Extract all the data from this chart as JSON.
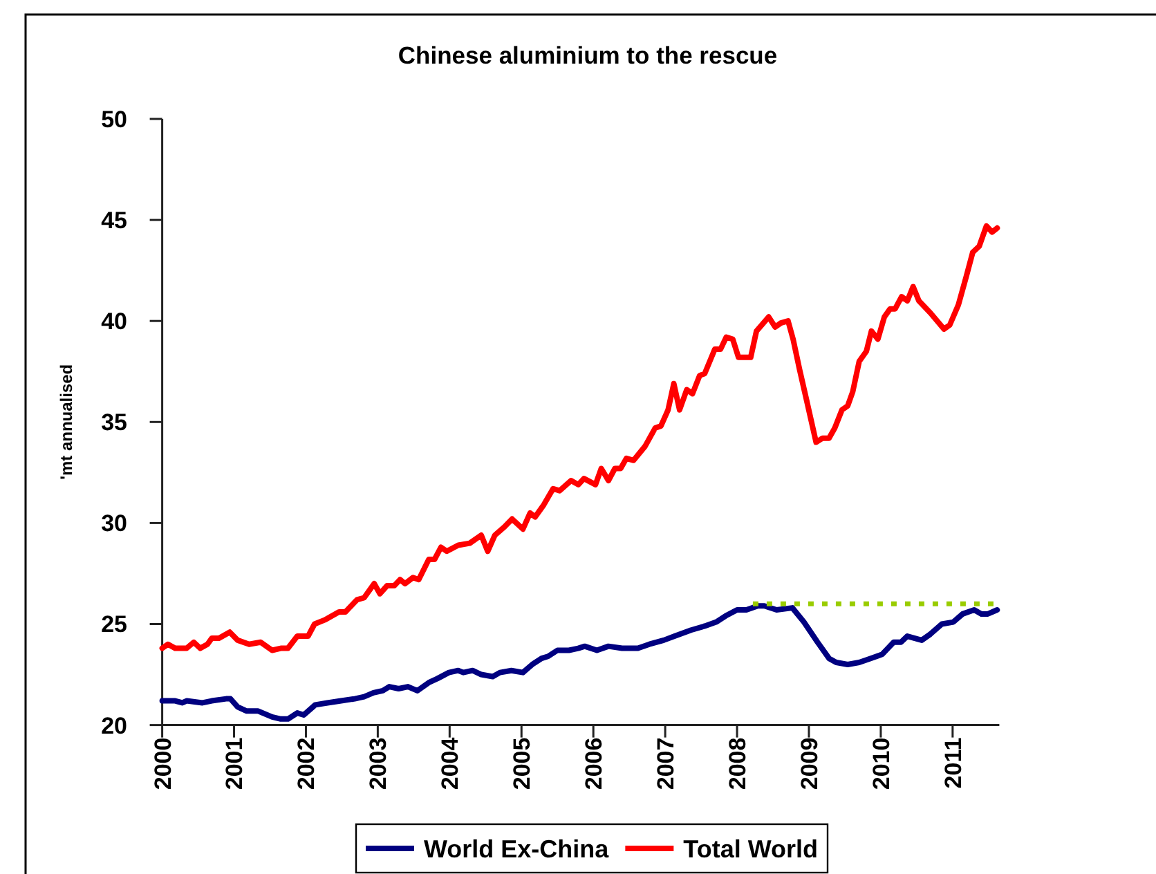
{
  "chart_data": {
    "type": "line",
    "title": "Chinese aluminium to the rescue",
    "ylabel": "'mt annualised",
    "xlim": [
      2000,
      2011.65
    ],
    "xticks": [
      2000,
      2001,
      2002,
      2003,
      2004,
      2005,
      2006,
      2007,
      2008,
      2009,
      2010,
      2011
    ],
    "ylim": [
      20,
      50
    ],
    "yticks": [
      20,
      25,
      30,
      35,
      40,
      45,
      50
    ],
    "legend": "bottom",
    "line_style": "solid",
    "marker": "none",
    "series": [
      {
        "name": "World Ex-China",
        "color": "#000080",
        "x": [
          2000.0,
          2000.18,
          2000.28,
          2000.34,
          2000.56,
          2000.69,
          2000.89,
          2000.95,
          2001.05,
          2001.17,
          2001.33,
          2001.53,
          2001.65,
          2001.75,
          2001.88,
          2001.97,
          2002.13,
          2002.3,
          2002.49,
          2002.68,
          2002.81,
          2002.94,
          2003.07,
          2003.16,
          2003.29,
          2003.42,
          2003.55,
          2003.71,
          2003.83,
          2003.99,
          2004.12,
          2004.19,
          2004.32,
          2004.44,
          2004.6,
          2004.7,
          2004.86,
          2005.02,
          2005.15,
          2005.28,
          2005.37,
          2005.5,
          2005.66,
          2005.79,
          2005.88,
          2006.05,
          2006.21,
          2006.4,
          2006.62,
          2006.78,
          2006.98,
          2007.13,
          2007.36,
          2007.55,
          2007.71,
          2007.84,
          2008.0,
          2008.13,
          2008.29,
          2008.38,
          2008.55,
          2008.77,
          2008.93,
          2009.12,
          2009.28,
          2009.38,
          2009.54,
          2009.7,
          2009.86,
          2010.02,
          2010.18,
          2010.28,
          2010.37,
          2010.57,
          2010.69,
          2010.85,
          2011.01,
          2011.14,
          2011.3,
          2011.4,
          2011.49,
          2011.62
        ],
        "values": [
          21.2,
          21.2,
          21.1,
          21.2,
          21.1,
          21.2,
          21.3,
          21.3,
          20.9,
          20.7,
          20.7,
          20.4,
          20.3,
          20.3,
          20.6,
          20.5,
          21.0,
          21.1,
          21.2,
          21.3,
          21.4,
          21.6,
          21.7,
          21.9,
          21.8,
          21.9,
          21.7,
          22.1,
          22.3,
          22.6,
          22.7,
          22.6,
          22.7,
          22.5,
          22.4,
          22.6,
          22.7,
          22.6,
          23.0,
          23.3,
          23.4,
          23.7,
          23.7,
          23.8,
          23.9,
          23.7,
          23.9,
          23.8,
          23.8,
          24.0,
          24.2,
          24.4,
          24.7,
          24.9,
          25.1,
          25.4,
          25.7,
          25.7,
          25.9,
          25.9,
          25.7,
          25.8,
          25.1,
          24.1,
          23.3,
          23.1,
          23.0,
          23.1,
          23.3,
          23.5,
          24.1,
          24.1,
          24.4,
          24.2,
          24.5,
          25.0,
          25.1,
          25.5,
          25.7,
          25.5,
          25.5,
          25.7
        ]
      },
      {
        "name": "Total World",
        "color": "#ff0000",
        "x": [
          2000.0,
          2000.08,
          2000.18,
          2000.34,
          2000.44,
          2000.53,
          2000.63,
          2000.69,
          2000.79,
          2000.94,
          2001.05,
          2001.21,
          2001.37,
          2001.53,
          2001.65,
          2001.75,
          2001.88,
          2002.03,
          2002.12,
          2002.26,
          2002.46,
          2002.55,
          2002.71,
          2002.81,
          2002.95,
          2003.03,
          2003.13,
          2003.23,
          2003.31,
          2003.38,
          2003.49,
          2003.57,
          2003.71,
          2003.79,
          2003.88,
          2003.96,
          2004.12,
          2004.28,
          2004.44,
          2004.53,
          2004.63,
          2004.76,
          2004.87,
          2005.02,
          2005.12,
          2005.19,
          2005.31,
          2005.44,
          2005.53,
          2005.69,
          2005.79,
          2005.87,
          2006.03,
          2006.11,
          2006.21,
          2006.3,
          2006.38,
          2006.46,
          2006.56,
          2006.72,
          2006.86,
          2006.94,
          2007.04,
          2007.12,
          2007.2,
          2007.3,
          2007.38,
          2007.48,
          2007.55,
          2007.69,
          2007.77,
          2007.85,
          2007.94,
          2008.02,
          2008.19,
          2008.27,
          2008.44,
          2008.53,
          2008.61,
          2008.71,
          2008.78,
          2008.87,
          2008.96,
          2009.1,
          2009.19,
          2009.28,
          2009.36,
          2009.46,
          2009.54,
          2009.61,
          2009.7,
          2009.8,
          2009.87,
          2009.96,
          2010.05,
          2010.13,
          2010.2,
          2010.29,
          2010.37,
          2010.45,
          2010.53,
          2010.69,
          2010.88,
          2010.96,
          2011.08,
          2011.19,
          2011.28,
          2011.37,
          2011.47,
          2011.55,
          2011.62
        ],
        "values": [
          23.8,
          24.0,
          23.8,
          23.8,
          24.1,
          23.8,
          24.0,
          24.3,
          24.3,
          24.6,
          24.2,
          24.0,
          24.1,
          23.7,
          23.8,
          23.8,
          24.4,
          24.4,
          25.0,
          25.2,
          25.6,
          25.6,
          26.2,
          26.3,
          27.0,
          26.5,
          26.9,
          26.9,
          27.2,
          27.0,
          27.3,
          27.2,
          28.2,
          28.2,
          28.8,
          28.6,
          28.9,
          29.0,
          29.4,
          28.6,
          29.4,
          29.8,
          30.2,
          29.7,
          30.5,
          30.3,
          30.9,
          31.7,
          31.6,
          32.1,
          31.9,
          32.2,
          31.9,
          32.7,
          32.1,
          32.7,
          32.7,
          33.2,
          33.1,
          33.8,
          34.7,
          34.8,
          35.6,
          36.9,
          35.6,
          36.6,
          36.4,
          37.3,
          37.4,
          38.6,
          38.6,
          39.2,
          39.1,
          38.2,
          38.2,
          39.5,
          40.2,
          39.7,
          39.9,
          40.0,
          39.1,
          37.6,
          36.2,
          34.0,
          34.2,
          34.2,
          34.7,
          35.6,
          35.8,
          36.5,
          38.0,
          38.5,
          39.5,
          39.1,
          40.2,
          40.6,
          40.6,
          41.2,
          41.0,
          41.7,
          41.0,
          40.4,
          39.6,
          39.8,
          40.8,
          42.2,
          43.4,
          43.7,
          44.7,
          44.4,
          44.6
        ]
      },
      {
        "color": "#99cc00",
        "line_style": "dotted",
        "x": [
          2008.22,
          2011.65
        ],
        "values": [
          26,
          26
        ]
      }
    ]
  }
}
